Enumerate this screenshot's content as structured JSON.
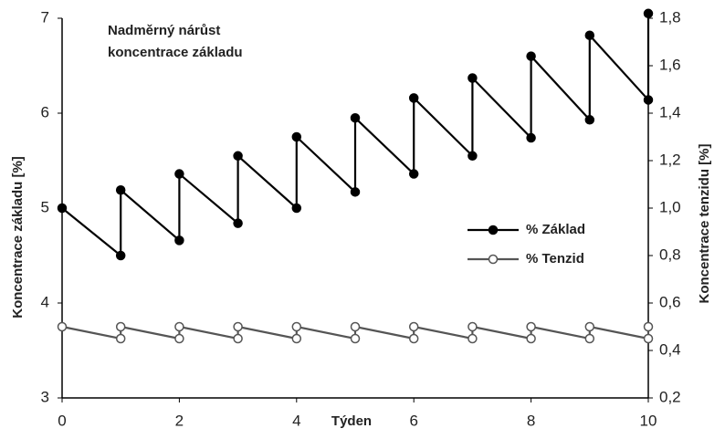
{
  "chart_data": {
    "type": "line",
    "annotation_lines": [
      "Nadměrný nárůst",
      "koncentrace základu"
    ],
    "xlabel": "Týden",
    "ylabel": "Koncentrace základu [%]",
    "y2label": "Koncentrace tenzidu [%]",
    "x": [
      0,
      1,
      1,
      2,
      2,
      3,
      3,
      4,
      4,
      5,
      5,
      6,
      6,
      7,
      7,
      8,
      8,
      9,
      9,
      10,
      10
    ],
    "series": [
      {
        "name": "% Základ",
        "color": "#000000",
        "marker": "filled",
        "axis": "y",
        "values": [
          5.0,
          4.5,
          5.19,
          4.66,
          5.36,
          4.84,
          5.55,
          5.0,
          5.75,
          5.17,
          5.95,
          5.36,
          6.16,
          5.55,
          6.37,
          5.74,
          6.6,
          5.93,
          6.82,
          6.14,
          7.05
        ]
      },
      {
        "name": "% Tenzid",
        "color": "#555555",
        "marker": "open",
        "axis": "y2",
        "values": [
          0.5,
          0.45,
          0.5,
          0.45,
          0.5,
          0.45,
          0.5,
          0.45,
          0.5,
          0.45,
          0.5,
          0.45,
          0.5,
          0.45,
          0.5,
          0.45,
          0.5,
          0.45,
          0.5,
          0.45,
          0.5
        ]
      }
    ],
    "xlim": [
      0,
      10
    ],
    "xticks": [
      0,
      2,
      4,
      6,
      8,
      10
    ],
    "ylim": [
      3,
      7
    ],
    "yticks": [
      3,
      4,
      5,
      6,
      7
    ],
    "y2lim": [
      0.2,
      1.8
    ],
    "y2ticks": [
      {
        "value": 0.2,
        "label": "0,2"
      },
      {
        "value": 0.4,
        "label": "0,4"
      },
      {
        "value": 0.6,
        "label": "0,6"
      },
      {
        "value": 0.8,
        "label": "0,8"
      },
      {
        "value": 1.0,
        "label": "1,0"
      },
      {
        "value": 1.2,
        "label": "1,2"
      },
      {
        "value": 1.4,
        "label": "1,4"
      },
      {
        "value": 1.6,
        "label": "1,6"
      },
      {
        "value": 1.8,
        "label": "1,8"
      }
    ],
    "grid": false
  }
}
